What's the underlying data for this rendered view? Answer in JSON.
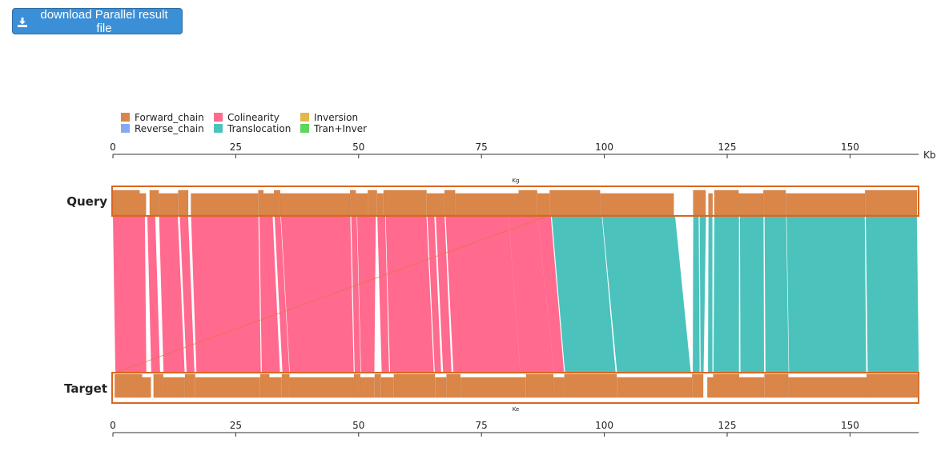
{
  "download": {
    "label": "download Parallel result file",
    "icon": "download-icon"
  },
  "colors": {
    "Forward_chain": "#db8649",
    "Reverse_chain": "#87a9ef",
    "Colinearity": "#ff6a8e",
    "Translocation": "#4cc2bd",
    "Inversion": "#e3b84a",
    "Tran+Inver": "#5cd65c",
    "track_border": "#d9661f",
    "button": "#3b8fd6"
  },
  "chart_data": {
    "type": "synteny",
    "legend": {
      "placement": "top-left",
      "entries": [
        "Forward_chain",
        "Reverse_chain",
        "Colinearity",
        "Translocation",
        "Inversion",
        "Tran+Inver"
      ]
    },
    "top_axis": {
      "ticks": [
        0,
        25,
        50,
        75,
        100,
        125,
        150
      ],
      "unit": "Kb",
      "range": [
        0,
        164
      ]
    },
    "bottom_axis": {
      "ticks": [
        0,
        25,
        50,
        75,
        100,
        125,
        150
      ],
      "range": [
        0,
        164
      ]
    },
    "query": {
      "label": "Query",
      "name": "Kg",
      "blocks": [
        [
          0,
          5.5
        ],
        [
          5.5,
          6.8
        ],
        [
          7.5,
          9.4
        ],
        [
          9.4,
          13.3
        ],
        [
          13.3,
          15.4
        ],
        [
          15.9,
          29.6
        ],
        [
          29.6,
          30.7
        ],
        [
          30.7,
          32.8
        ],
        [
          32.8,
          34.1
        ],
        [
          34.1,
          48.3
        ],
        [
          48.3,
          49.5
        ],
        [
          49.5,
          51.9
        ],
        [
          51.9,
          53.8
        ],
        [
          53.8,
          55.1
        ],
        [
          55.1,
          63.9
        ],
        [
          63.9,
          67.5
        ],
        [
          67.5,
          69.7
        ],
        [
          69.7,
          82.6
        ],
        [
          82.6,
          86.4
        ],
        [
          86.4,
          88.9
        ],
        [
          88.9,
          99.2
        ],
        [
          99.2,
          114.2
        ],
        [
          118.1,
          120.7
        ],
        [
          121.2,
          122.1
        ],
        [
          122.4,
          127.4
        ],
        [
          127.4,
          132.4
        ],
        [
          132.4,
          137.0
        ],
        [
          137.0,
          153.1
        ],
        [
          153.1,
          163.7
        ]
      ]
    },
    "target": {
      "label": "Target",
      "name": "Ke",
      "blocks": [
        [
          0.4,
          6.0
        ],
        [
          6.0,
          7.8
        ],
        [
          8.3,
          10.3
        ],
        [
          10.3,
          14.7
        ],
        [
          14.7,
          16.8
        ],
        [
          16.8,
          30.0
        ],
        [
          30.0,
          31.9
        ],
        [
          31.9,
          34.4
        ],
        [
          34.4,
          36.0
        ],
        [
          36.0,
          49.1
        ],
        [
          49.1,
          50.4
        ],
        [
          50.4,
          53.3
        ],
        [
          53.3,
          54.6
        ],
        [
          54.6,
          57.2
        ],
        [
          57.2,
          65.6
        ],
        [
          65.6,
          67.9
        ],
        [
          67.9,
          70.8
        ],
        [
          70.8,
          84.1
        ],
        [
          84.1,
          89.7
        ],
        [
          89.7,
          91.9
        ],
        [
          91.9,
          102.6
        ],
        [
          102.6,
          117.9
        ],
        [
          117.9,
          120.2
        ],
        [
          121.0,
          122.2
        ],
        [
          122.2,
          127.5
        ],
        [
          127.5,
          132.6
        ],
        [
          132.6,
          137.5
        ],
        [
          137.5,
          153.4
        ],
        [
          153.4,
          164.0
        ]
      ]
    },
    "links": [
      {
        "q": [
          0,
          6.5
        ],
        "t": [
          0.5,
          6.8
        ],
        "type": "Colinearity"
      },
      {
        "q": [
          7.0,
          8.6
        ],
        "t": [
          7.8,
          9.6
        ],
        "type": "Colinearity"
      },
      {
        "q": [
          9.4,
          13.2
        ],
        "t": [
          10.3,
          14.6
        ],
        "type": "Colinearity"
      },
      {
        "q": [
          13.6,
          15.3
        ],
        "t": [
          15.0,
          16.6
        ],
        "type": "Colinearity"
      },
      {
        "q": [
          15.9,
          29.6
        ],
        "t": [
          17.0,
          30.1
        ],
        "type": "Colinearity"
      },
      {
        "q": [
          29.8,
          32.5
        ],
        "t": [
          30.3,
          34.0
        ],
        "type": "Colinearity"
      },
      {
        "q": [
          32.9,
          34.1
        ],
        "t": [
          34.5,
          35.9
        ],
        "type": "Colinearity"
      },
      {
        "q": [
          34.2,
          48.3
        ],
        "t": [
          36.0,
          49.0
        ],
        "type": "Colinearity"
      },
      {
        "q": [
          48.5,
          49.6
        ],
        "t": [
          49.2,
          50.4
        ],
        "type": "Colinearity"
      },
      {
        "q": [
          49.7,
          53.5
        ],
        "t": [
          50.5,
          53.2
        ],
        "type": "Colinearity"
      },
      {
        "q": [
          53.8,
          55.4
        ],
        "t": [
          54.7,
          56.2
        ],
        "type": "Colinearity"
      },
      {
        "q": [
          55.5,
          63.8
        ],
        "t": [
          56.4,
          65.3
        ],
        "type": "Colinearity"
      },
      {
        "q": [
          64.0,
          65.4
        ],
        "t": [
          65.5,
          66.8
        ],
        "type": "Colinearity"
      },
      {
        "q": [
          65.7,
          67.5
        ],
        "t": [
          67.2,
          68.9
        ],
        "type": "Colinearity"
      },
      {
        "q": [
          67.7,
          80.5
        ],
        "t": [
          69.3,
          82.9
        ],
        "type": "Colinearity"
      },
      {
        "q": [
          80.5,
          86.4
        ],
        "t": [
          82.9,
          89.8
        ],
        "type": "Colinearity"
      },
      {
        "q": [
          86.4,
          89.1
        ],
        "t": [
          89.8,
          91.8
        ],
        "type": "Colinearity"
      },
      {
        "q": [
          89.3,
          99.5
        ],
        "t": [
          92.0,
          102.3
        ],
        "type": "Translocation"
      },
      {
        "q": [
          99.6,
          114.4
        ],
        "t": [
          102.6,
          117.6
        ],
        "type": "Translocation"
      },
      {
        "q": [
          118.1,
          119.2
        ],
        "t": [
          118.0,
          119.4
        ],
        "type": "Translocation"
      },
      {
        "q": [
          119.4,
          120.7
        ],
        "t": [
          119.6,
          120.2
        ],
        "type": "Translocation"
      },
      {
        "q": [
          121.2,
          122.0
        ],
        "t": [
          121.1,
          122.0
        ],
        "type": "Translocation"
      },
      {
        "q": [
          122.4,
          127.4
        ],
        "t": [
          122.2,
          127.4
        ],
        "type": "Translocation"
      },
      {
        "q": [
          127.6,
          132.4
        ],
        "t": [
          127.7,
          132.5
        ],
        "type": "Translocation"
      },
      {
        "q": [
          132.6,
          137.0
        ],
        "t": [
          132.8,
          137.5
        ],
        "type": "Translocation"
      },
      {
        "q": [
          137.1,
          153.0
        ],
        "t": [
          137.6,
          153.3
        ],
        "type": "Translocation"
      },
      {
        "q": [
          153.2,
          163.6
        ],
        "t": [
          153.6,
          164.0
        ],
        "type": "Translocation"
      }
    ],
    "diagonal_link": {
      "q": 88.5,
      "t": 0.5,
      "type": "Colinearity"
    }
  }
}
